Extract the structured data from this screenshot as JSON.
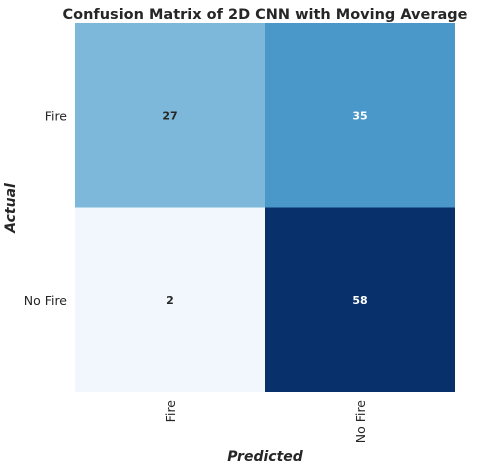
{
  "chart_data": {
    "type": "heatmap",
    "title": "Confusion Matrix of 2D CNN with Moving Average",
    "xlabel": "Predicted",
    "ylabel": "Actual",
    "x_categories": [
      "Fire",
      "No Fire"
    ],
    "y_categories": [
      "Fire",
      "No Fire"
    ],
    "values": [
      [
        27,
        35
      ],
      [
        2,
        58
      ]
    ],
    "colormap": "Blues",
    "cell_colors": [
      [
        "#7db8da",
        "#4a98c9"
      ],
      [
        "#f1f7fd",
        "#08306b"
      ]
    ],
    "annotation_colors": [
      [
        "#262626",
        "#ffffff"
      ],
      [
        "#262626",
        "#ffffff"
      ]
    ],
    "colorbar": false,
    "grid": false
  }
}
